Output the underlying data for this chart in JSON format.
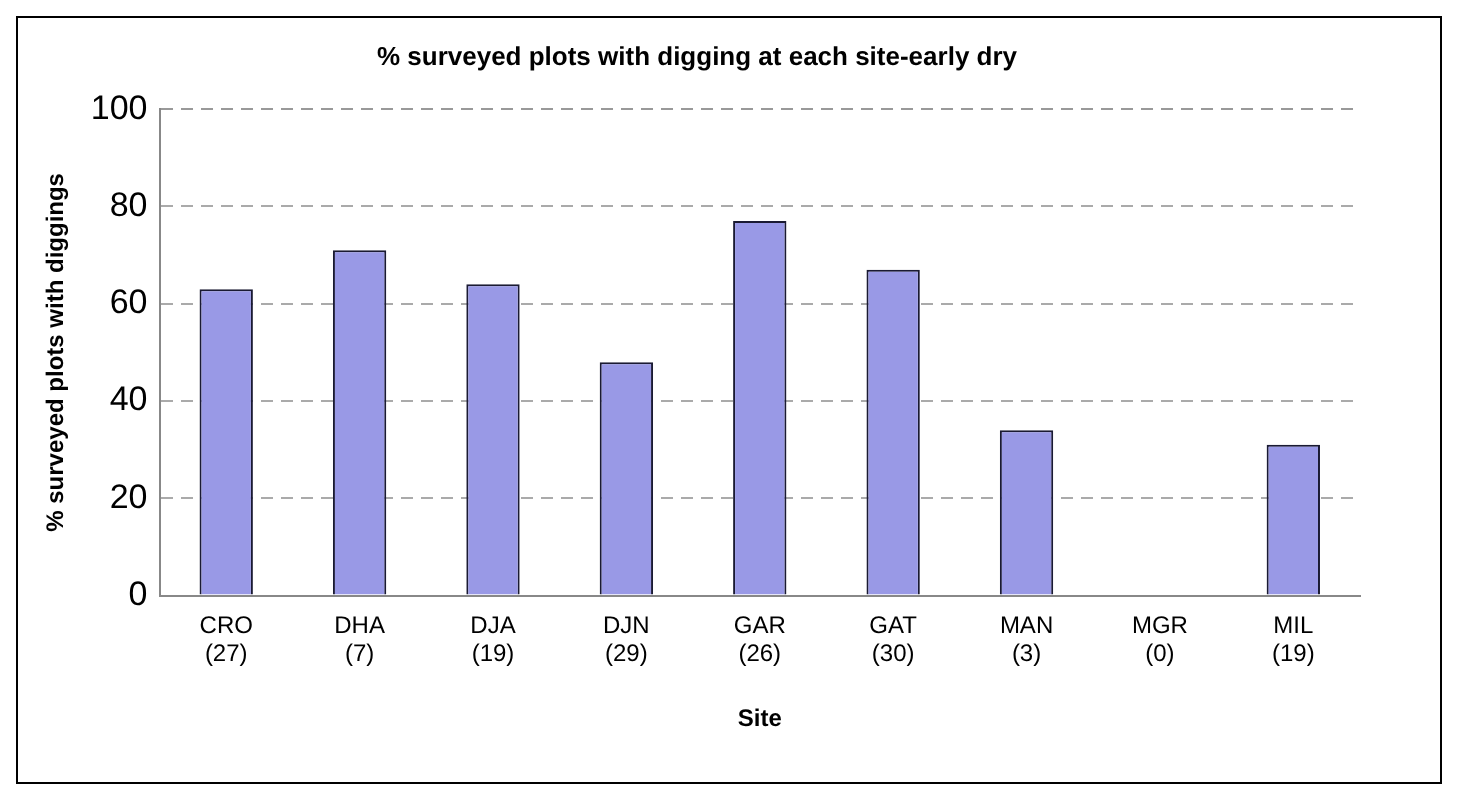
{
  "chart_data": {
    "type": "bar",
    "title": "% surveyed plots with digging at each site-early dry",
    "xlabel": "Site",
    "ylabel": "% surveyed plots with diggings",
    "categories": [
      "CRO\n(27)",
      "DHA\n(7)",
      "DJA\n(19)",
      "DJN\n(29)",
      "GAR\n(26)",
      "GAT\n(30)",
      "MAN\n(3)",
      "MGR\n(0)",
      "MIL\n(19)"
    ],
    "values": [
      63,
      71,
      64,
      48,
      77,
      67,
      34,
      0,
      31
    ],
    "color": "#9999e6",
    "ylim": [
      0,
      100
    ],
    "yticks": [
      0,
      20,
      40,
      60,
      80,
      100
    ],
    "grid": "y",
    "legend": false
  }
}
